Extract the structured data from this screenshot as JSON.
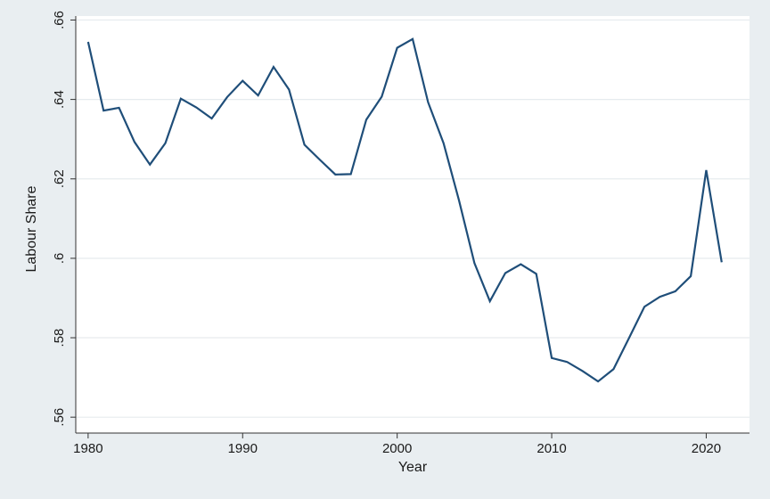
{
  "chart_data": {
    "type": "line",
    "xlabel": "Year",
    "ylabel": "Labour Share",
    "xlim": [
      1979.2,
      2022.8
    ],
    "ylim": [
      0.556,
      0.661
    ],
    "x_ticks": [
      1980,
      1990,
      2000,
      2010,
      2020
    ],
    "x_tick_labels": [
      "1980",
      "1990",
      "2000",
      "2010",
      "2020"
    ],
    "y_ticks": [
      0.56,
      0.58,
      0.6,
      0.62,
      0.64,
      0.66
    ],
    "y_tick_labels": [
      ".56",
      ".58",
      ".6",
      ".62",
      ".64",
      ".66"
    ],
    "grid": "horizontal",
    "line_color": "#1f4e79",
    "plot_background": "#ffffff",
    "page_background": "#e9eef1",
    "gridline_color": "#e6ebee",
    "series": [
      {
        "x": [
          1980,
          1981,
          1982,
          1983,
          1984,
          1985,
          1986,
          1987,
          1988,
          1989,
          1990,
          1991,
          1992,
          1993,
          1994,
          1995,
          1996,
          1997,
          1998,
          1999,
          2000,
          2001,
          2002,
          2003,
          2004,
          2005,
          2006,
          2007,
          2008,
          2009,
          2010,
          2011,
          2012,
          2013,
          2014,
          2015,
          2016,
          2017,
          2018,
          2019,
          2020,
          2021
        ],
        "values": [
          0.6545,
          0.6372,
          0.6379,
          0.6293,
          0.6236,
          0.629,
          0.6402,
          0.638,
          0.6352,
          0.6406,
          0.6447,
          0.641,
          0.6482,
          0.6425,
          0.6286,
          0.6248,
          0.6211,
          0.6212,
          0.6349,
          0.6407,
          0.653,
          0.6552,
          0.6393,
          0.629,
          0.6146,
          0.5988,
          0.5892,
          0.5963,
          0.5985,
          0.5961,
          0.5749,
          0.5739,
          0.5716,
          0.569,
          0.5721,
          0.5799,
          0.5878,
          0.5903,
          0.5917,
          0.5955,
          0.6222,
          0.599
        ]
      }
    ]
  }
}
